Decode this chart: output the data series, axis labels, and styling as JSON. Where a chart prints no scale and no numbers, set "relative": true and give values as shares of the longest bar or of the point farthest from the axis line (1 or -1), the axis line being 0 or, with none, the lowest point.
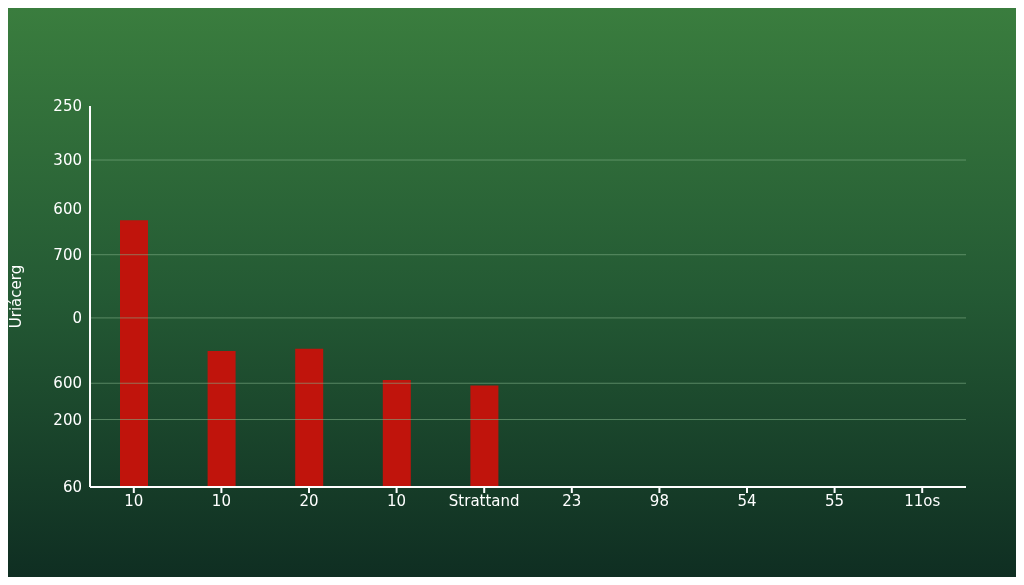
{
  "chart_data": {
    "type": "bar",
    "relative": true,
    "ylabel": "Uriácerg",
    "categories": [
      "10",
      "10",
      "20",
      "10",
      "Strattand",
      "23",
      "98",
      "54",
      "55",
      "11os"
    ],
    "values": [
      1,
      0.51,
      0.518,
      0.401,
      0.381,
      null,
      null,
      null,
      null,
      null
    ],
    "color": "#c0140c",
    "annotations": [
      "250",
      "300",
      "600",
      "700",
      "0",
      "600",
      "200",
      "60"
    ],
    "ref_lines": [
      {
        "axis": "y",
        "value": 1.226,
        "color": "#7fae85"
      },
      {
        "axis": "y",
        "value": 0.871,
        "color": "#7fae85"
      },
      {
        "axis": "y",
        "value": 0.634,
        "color": "#7fae85"
      },
      {
        "axis": "y",
        "value": 0.389,
        "color": "#7fae85"
      },
      {
        "axis": "y",
        "value": 0.253,
        "color": "#7fae85"
      }
    ]
  }
}
